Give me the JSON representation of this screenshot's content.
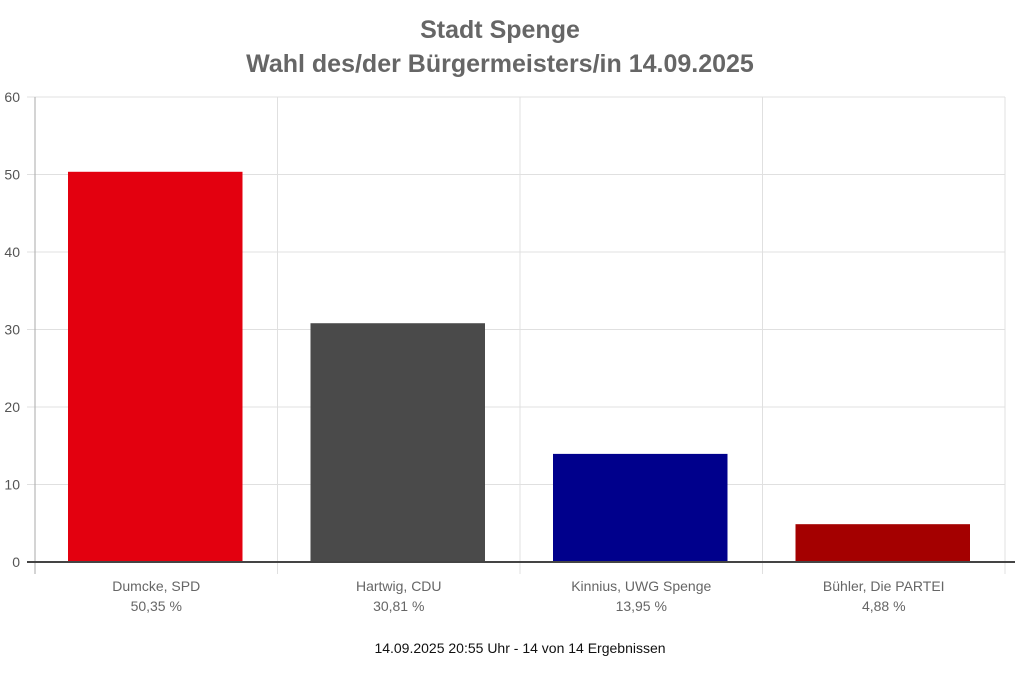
{
  "chart_data": {
    "type": "bar",
    "title": "Stadt Spenge",
    "subtitle": "Wahl des/der Bürgermeisters/in 14.09.2025",
    "categories": [
      "Dumcke, SPD",
      "Hartwig, CDU",
      "Kinnius, UWG Spenge",
      "Bühler, Die PARTEI"
    ],
    "value_labels": [
      "50,35 %",
      "30,81 %",
      "13,95 %",
      "4,88 %"
    ],
    "values": [
      50.35,
      30.81,
      13.95,
      4.88
    ],
    "colors": [
      "#e3000f",
      "#4a4a4a",
      "#00008c",
      "#a40000"
    ],
    "ylim": [
      0,
      60
    ],
    "yticks": [
      0,
      10,
      20,
      30,
      40,
      50,
      60
    ],
    "xlabel": "",
    "ylabel": "",
    "grid": true,
    "legend": "none"
  },
  "footer": "14.09.2025 20:55 Uhr - 14 von 14 Ergebnissen"
}
